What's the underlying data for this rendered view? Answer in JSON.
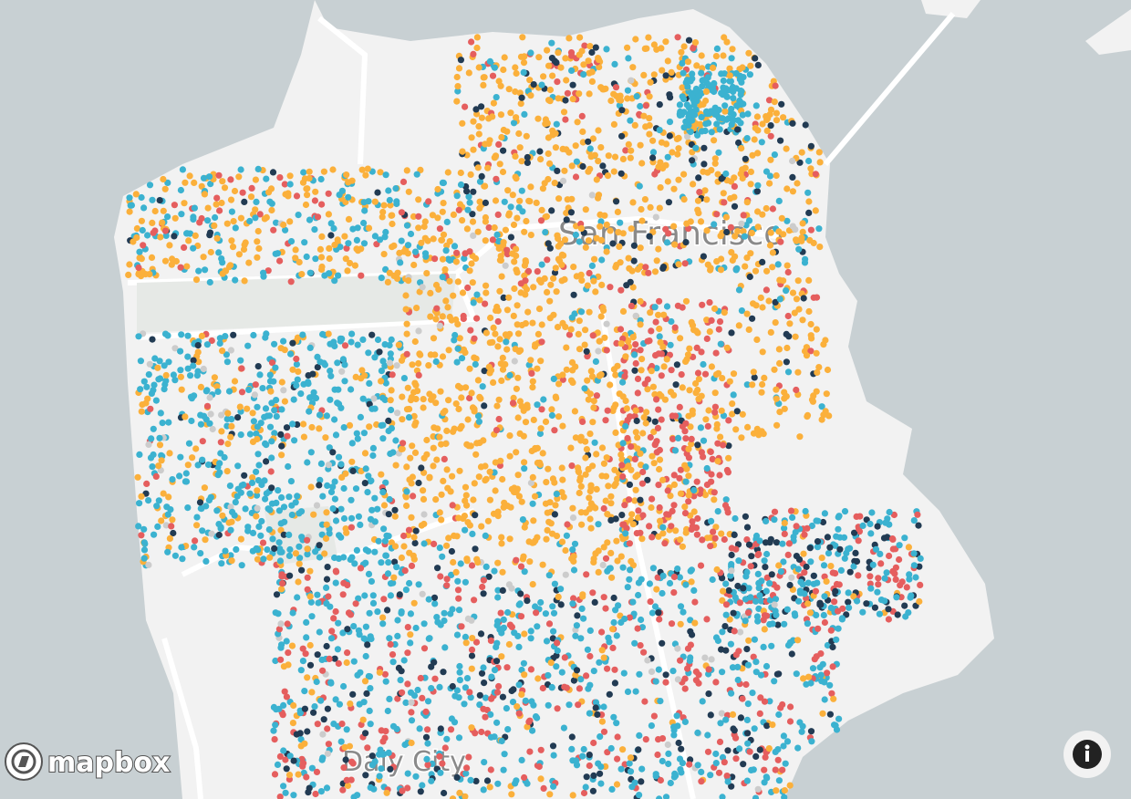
{
  "map": {
    "labels": {
      "city": "San Francisco",
      "south": "Daly City"
    },
    "attribution": {
      "logo": "mapbox"
    },
    "dot_colors": [
      "#fbb03b",
      "#3bb2d0",
      "#e55e5e",
      "#223b53",
      "#cccccc"
    ]
  }
}
